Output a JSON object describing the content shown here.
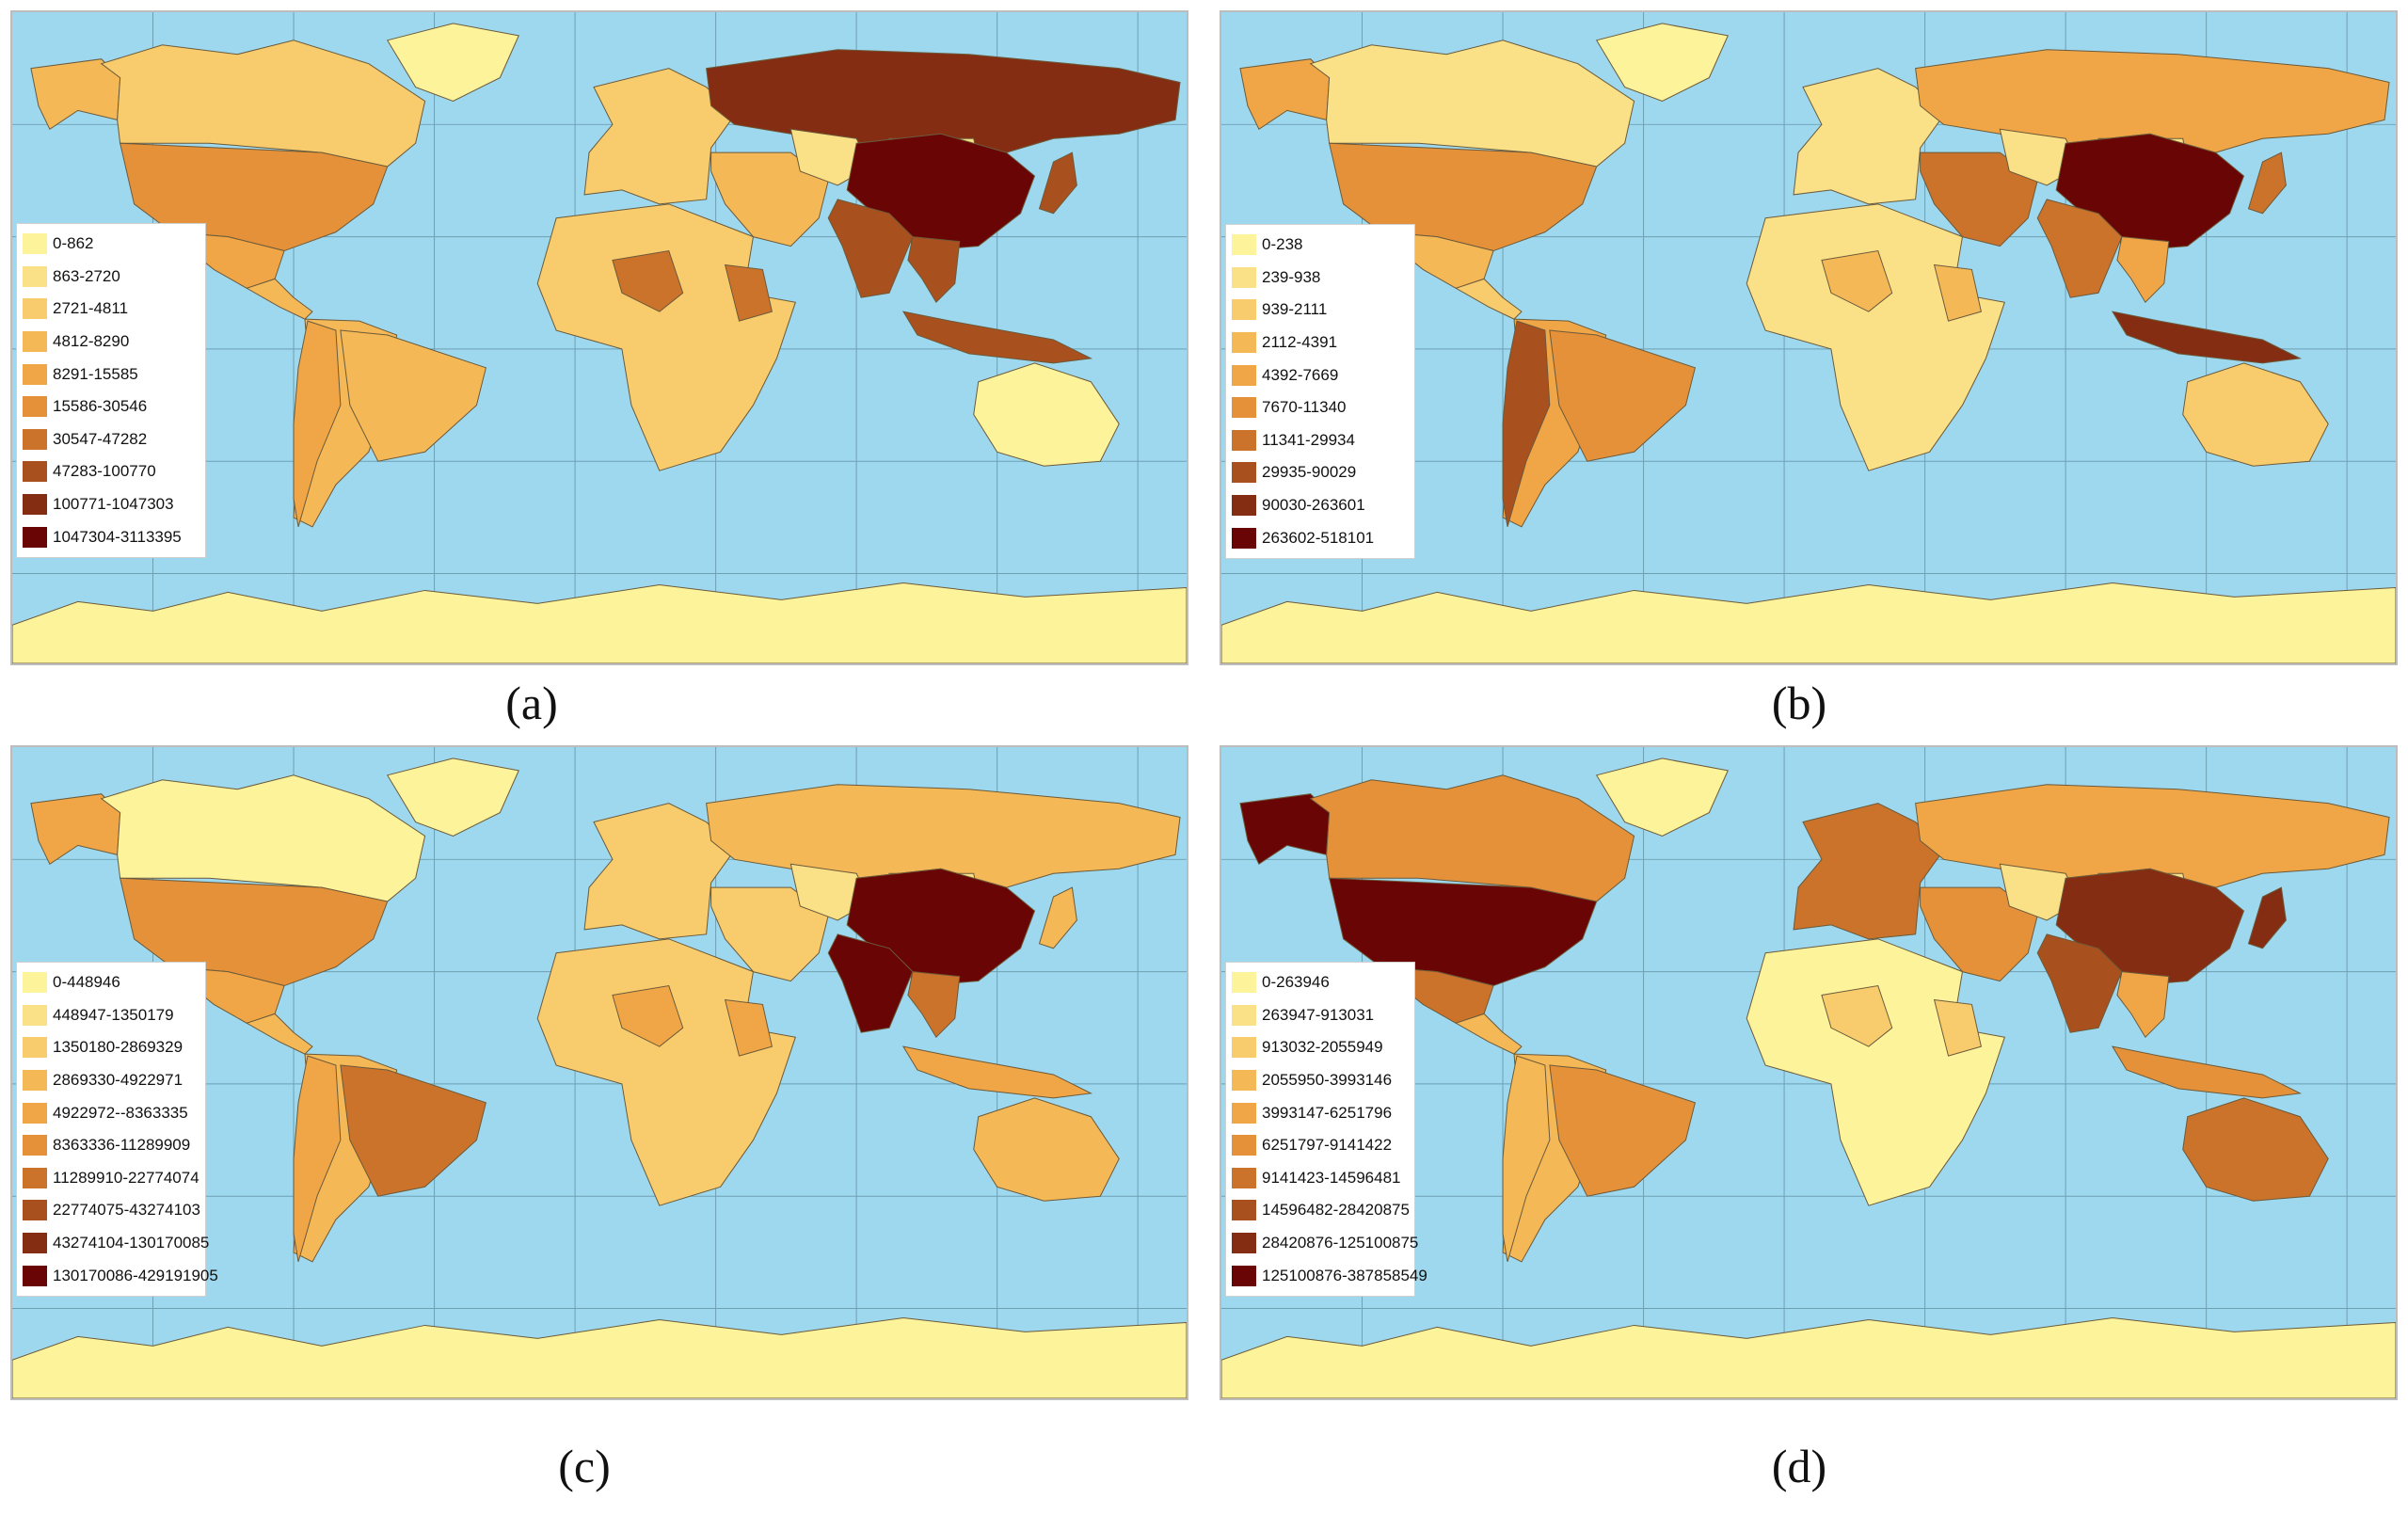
{
  "colors": {
    "ocean": "#9ed8ee",
    "scale": [
      "#fdf39a",
      "#fae187",
      "#f8cc6c",
      "#f5b857",
      "#f0a646",
      "#e4913a",
      "#cb722b",
      "#a9501f",
      "#852d12",
      "#6a0505"
    ]
  },
  "panels": [
    {
      "caption": "(a)",
      "legend": [
        "0-862",
        "863-2720",
        "2721-4811",
        "4812-8290",
        "8291-15585",
        "15586-30546",
        "30547-47282",
        "47283-100770",
        "100771-1047303",
        "1047304-3113395"
      ]
    },
    {
      "caption": "(b)",
      "legend": [
        "0-238",
        "239-938",
        "939-2111",
        "2112-4391",
        "4392-7669",
        "7670-11340",
        "11341-29934",
        "29935-90029",
        "90030-263601",
        "263602-518101"
      ]
    },
    {
      "caption": "(c)",
      "legend": [
        "0-448946",
        "448947-1350179",
        "1350180-2869329",
        "2869330-4922971",
        "4922972--8363335",
        "8363336-11289909",
        "11289910-22774074",
        "22774075-43274103",
        "43274104-130170085",
        "130170086-429191905"
      ]
    },
    {
      "caption": "(d)",
      "legend": [
        "0-263946",
        "263947-913031",
        "913032-2055949",
        "2055950-3993146",
        "3993147-6251796",
        "6251797-9141422",
        "9141423-14596481",
        "14596482-28420875",
        "28420876-125100875",
        "125100876-387858549"
      ]
    }
  ],
  "regions": {
    "a": {
      "alaska": 3,
      "canada": 2,
      "greenland": 0,
      "usa": 5,
      "mexico": 4,
      "central_america": 3,
      "south_america": 3,
      "brazil": 3,
      "andes": 4,
      "africa": 2,
      "africa_hot": 6,
      "europe": 2,
      "russia": 8,
      "middle_east": 3,
      "central_asia": 1,
      "mongolia": 1,
      "china": 9,
      "india": 7,
      "sea": 7,
      "japan": 7,
      "indonesia": 7,
      "australia": 0,
      "antarctica": 0
    },
    "b": {
      "alaska": 4,
      "canada": 1,
      "greenland": 0,
      "usa": 5,
      "mexico": 3,
      "central_america": 2,
      "south_america": 4,
      "brazil": 5,
      "andes": 7,
      "africa": 1,
      "africa_hot": 3,
      "europe": 1,
      "russia": 4,
      "middle_east": 6,
      "central_asia": 1,
      "mongolia": 1,
      "china": 9,
      "india": 6,
      "sea": 4,
      "japan": 6,
      "indonesia": 8,
      "australia": 2,
      "antarctica": 0
    },
    "c": {
      "alaska": 4,
      "canada": 0,
      "greenland": 0,
      "usa": 5,
      "mexico": 4,
      "central_america": 3,
      "south_america": 3,
      "brazil": 6,
      "andes": 4,
      "africa": 2,
      "africa_hot": 4,
      "europe": 2,
      "russia": 3,
      "middle_east": 2,
      "central_asia": 1,
      "mongolia": 1,
      "china": 9,
      "india": 9,
      "sea": 6,
      "japan": 3,
      "indonesia": 4,
      "australia": 3,
      "antarctica": 0
    },
    "d": {
      "alaska": 9,
      "canada": 5,
      "greenland": 0,
      "usa": 9,
      "mexico": 6,
      "central_america": 3,
      "south_america": 3,
      "brazil": 5,
      "andes": 3,
      "africa": 0,
      "africa_hot": 2,
      "europe": 6,
      "russia": 4,
      "middle_east": 5,
      "central_asia": 1,
      "mongolia": 1,
      "china": 8,
      "india": 7,
      "sea": 4,
      "japan": 8,
      "indonesia": 5,
      "australia": 6,
      "antarctica": 0
    }
  }
}
